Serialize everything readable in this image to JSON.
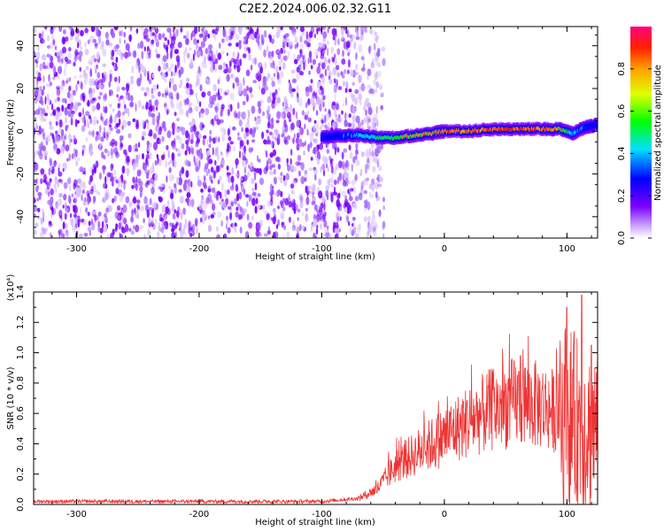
{
  "title": "C2E2.2024.006.02.32.G11",
  "chart_data": [
    {
      "type": "heatmap",
      "xlabel": "Height of straight line (km)",
      "ylabel": "Frequency (Hz)",
      "xlim": [
        -335,
        125
      ],
      "ylim": [
        -50,
        49
      ],
      "x_ticks": [
        -300,
        -200,
        -100,
        0,
        100
      ],
      "y_ticks": [
        -40,
        -20,
        0,
        20,
        40
      ],
      "description_points": {
        "noise_region_x": [
          -335,
          -60
        ],
        "signal_track": [
          {
            "x": -100,
            "y": -3,
            "amp": 0.3
          },
          {
            "x": -85,
            "y": -2,
            "amp": 0.4
          },
          {
            "x": -70,
            "y": -2,
            "amp": 0.5
          },
          {
            "x": -55,
            "y": -3,
            "amp": 0.6
          },
          {
            "x": -40,
            "y": -3,
            "amp": 0.7
          },
          {
            "x": -25,
            "y": -2,
            "amp": 0.75
          },
          {
            "x": -10,
            "y": -1,
            "amp": 0.85
          },
          {
            "x": 0,
            "y": 0,
            "amp": 0.9
          },
          {
            "x": 20,
            "y": 0,
            "amp": 0.92
          },
          {
            "x": 40,
            "y": 1,
            "amp": 0.95
          },
          {
            "x": 60,
            "y": 1,
            "amp": 0.95
          },
          {
            "x": 80,
            "y": 1,
            "amp": 0.9
          },
          {
            "x": 95,
            "y": 1,
            "amp": 0.8
          },
          {
            "x": 105,
            "y": -1,
            "amp": 0.5
          },
          {
            "x": 115,
            "y": 2,
            "amp": 0.4
          },
          {
            "x": 125,
            "y": 3,
            "amp": 0.4
          }
        ]
      },
      "colorbar": {
        "label": "Normalized spectral amplitude",
        "range": [
          0,
          1
        ],
        "ticks": [
          "0.0",
          "0.2",
          "0.4",
          "0.6",
          "0.8"
        ]
      }
    },
    {
      "type": "line",
      "xlabel": "Height of straight line (km)",
      "ylabel": "SNR (10 * v/v)",
      "scale_label": "(x10⁴)",
      "xlim": [
        -335,
        125
      ],
      "ylim": [
        0,
        1.4
      ],
      "x_ticks": [
        -300,
        -200,
        -100,
        0,
        100
      ],
      "y_ticks": [
        "0.0",
        "0.2",
        "0.4",
        "0.6",
        "0.8",
        "1.0",
        "1.2",
        "1.4"
      ],
      "color": "#ee3333",
      "envelope": [
        {
          "x": -335,
          "y": 0.02
        },
        {
          "x": -200,
          "y": 0.02
        },
        {
          "x": -100,
          "y": 0.02
        },
        {
          "x": -70,
          "y": 0.04
        },
        {
          "x": -55,
          "y": 0.1
        },
        {
          "x": -40,
          "y": 0.25
        },
        {
          "x": -25,
          "y": 0.33
        },
        {
          "x": -10,
          "y": 0.4
        },
        {
          "x": 0,
          "y": 0.45
        },
        {
          "x": 20,
          "y": 0.55
        },
        {
          "x": 40,
          "y": 0.63
        },
        {
          "x": 60,
          "y": 0.68
        },
        {
          "x": 80,
          "y": 0.65
        },
        {
          "x": 95,
          "y": 0.6
        },
        {
          "x": 105,
          "y": 0.55
        },
        {
          "x": 115,
          "y": 0.5
        },
        {
          "x": 125,
          "y": 0.5
        }
      ],
      "peaks": [
        {
          "x": 62,
          "y": 0.98
        },
        {
          "x": 100,
          "y": 1.3
        },
        {
          "x": 112,
          "y": 1.38
        },
        {
          "x": 120,
          "y": 1.05
        }
      ]
    }
  ]
}
